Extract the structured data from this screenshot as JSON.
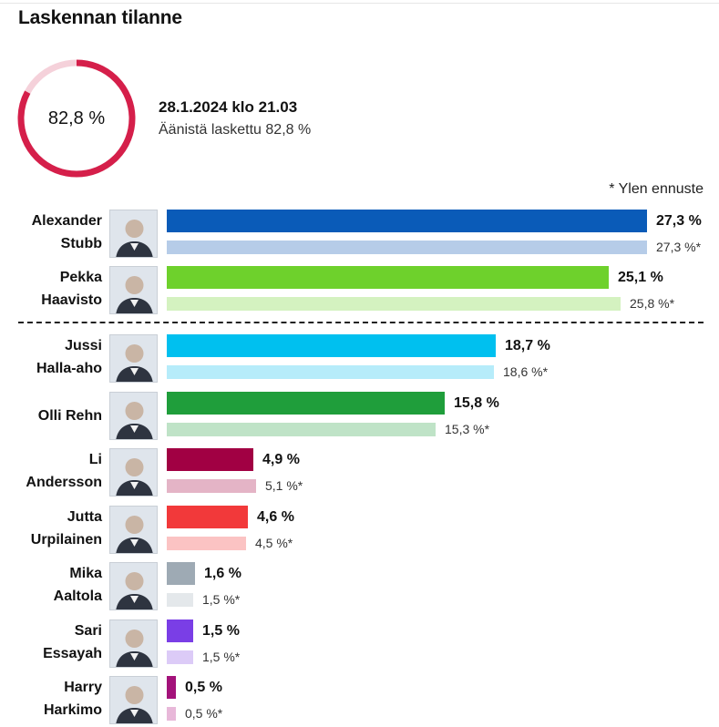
{
  "title": "Laskennan tilanne",
  "progress": {
    "value_label": "82,8 %",
    "fraction": 0.828,
    "datetime": "28.1.2024 klo 21.03",
    "counted_text": "Äänistä laskettu 82,8 %",
    "color": "#d51f4a",
    "track_color": "#f5d1da"
  },
  "forecast_note": "* Ylen ennuste",
  "chart_data": {
    "type": "bar",
    "orientation": "horizontal",
    "xlim": [
      0,
      27.3
    ],
    "grid": false,
    "legend": "none",
    "annotation": "* Ylen ennuste",
    "series": [
      {
        "values": [
          27.3,
          25.1,
          18.7,
          15.8,
          4.9,
          4.6,
          1.6,
          1.5,
          0.5
        ]
      },
      {
        "values": [
          27.3,
          25.8,
          18.6,
          15.3,
          5.1,
          4.5,
          1.5,
          1.5,
          0.5
        ]
      }
    ],
    "candidates": [
      {
        "name_line1": "Alexander",
        "name_line2": "Stubb",
        "value": 27.3,
        "value_label": "27,3 %",
        "forecast": 27.3,
        "forecast_label": "27,3 %*",
        "color": "#0a5bb8",
        "forecast_color": "#b6cce8"
      },
      {
        "name_line1": "Pekka",
        "name_line2": "Haavisto",
        "value": 25.1,
        "value_label": "25,1 %",
        "forecast": 25.8,
        "forecast_label": "25,8 %*",
        "color": "#6ed12c",
        "forecast_color": "#d4f2c0"
      },
      {
        "name_line1": "Jussi",
        "name_line2": "Halla-aho",
        "value": 18.7,
        "value_label": "18,7 %",
        "forecast": 18.6,
        "forecast_label": "18,6 %*",
        "color": "#00c0ef",
        "forecast_color": "#b6ecfa"
      },
      {
        "name_line1": "Olli Rehn",
        "name_line2": "",
        "value": 15.8,
        "value_label": "15,8 %",
        "forecast": 15.3,
        "forecast_label": "15,3 %*",
        "color": "#1f9e3b",
        "forecast_color": "#bfe3c7"
      },
      {
        "name_line1": "Li",
        "name_line2": "Andersson",
        "value": 4.9,
        "value_label": "4,9 %",
        "forecast": 5.1,
        "forecast_label": "5,1 %*",
        "color": "#a10043",
        "forecast_color": "#e4b4c6"
      },
      {
        "name_line1": "Jutta",
        "name_line2": "Urpilainen",
        "value": 4.6,
        "value_label": "4,6 %",
        "forecast": 4.5,
        "forecast_label": "4,5 %*",
        "color": "#f2393a",
        "forecast_color": "#fbc3c3"
      },
      {
        "name_line1": "Mika",
        "name_line2": "Aaltola",
        "value": 1.6,
        "value_label": "1,6 %",
        "forecast": 1.5,
        "forecast_label": "1,5 %*",
        "color": "#9eaab4",
        "forecast_color": "#e4e8eb"
      },
      {
        "name_line1": "Sari",
        "name_line2": "Essayah",
        "value": 1.5,
        "value_label": "1,5 %",
        "forecast": 1.5,
        "forecast_label": "1,5 %*",
        "color": "#7a3ee6",
        "forecast_color": "#dccbf7"
      },
      {
        "name_line1": "Harry",
        "name_line2": "Harkimo",
        "value": 0.5,
        "value_label": "0,5 %",
        "forecast": 0.5,
        "forecast_label": "0,5 %*",
        "color": "#a3127a",
        "forecast_color": "#e8b8d9"
      }
    ]
  }
}
